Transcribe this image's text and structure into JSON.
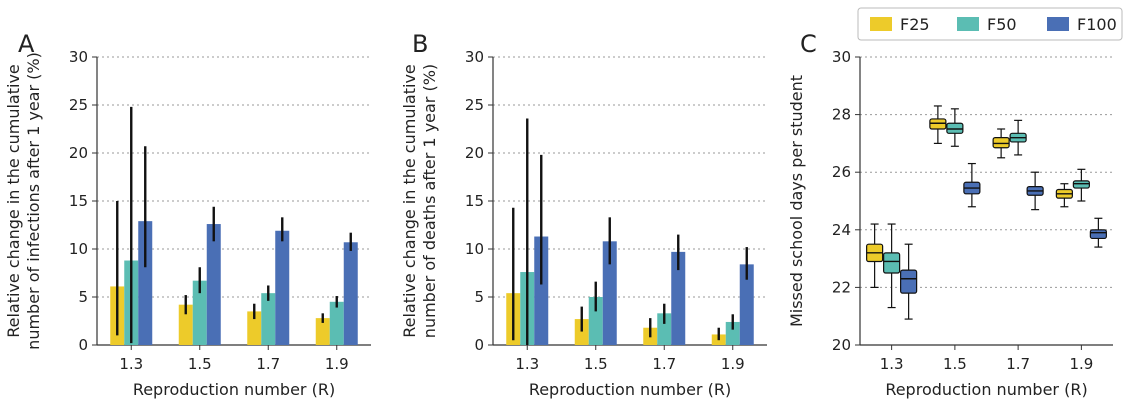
{
  "chart_data": [
    {
      "panel": "A",
      "type": "bar",
      "xlabel": "Reproduction number (R)",
      "ylabel": [
        "Relative change in the cumulative",
        "number of infections after 1 year (%)"
      ],
      "ylim": [
        0,
        30
      ],
      "yticks": [
        0,
        5,
        10,
        15,
        20,
        25,
        30
      ],
      "grid": "horizontal dotted",
      "categories": [
        "1.3",
        "1.5",
        "1.7",
        "1.9"
      ],
      "series": [
        {
          "name": "F25",
          "values": [
            6.1,
            4.2,
            3.5,
            2.8
          ],
          "err_low": [
            1.0,
            3.2,
            2.7,
            2.3
          ],
          "err_high": [
            15.0,
            5.2,
            4.3,
            3.3
          ]
        },
        {
          "name": "F50",
          "values": [
            8.8,
            6.7,
            5.4,
            4.5
          ],
          "err_low": [
            0.2,
            5.4,
            4.6,
            3.9
          ],
          "err_high": [
            24.8,
            8.1,
            6.2,
            5.1
          ]
        },
        {
          "name": "F100",
          "values": [
            12.9,
            12.6,
            11.9,
            10.7
          ],
          "err_low": [
            8.1,
            10.8,
            10.8,
            9.8
          ],
          "err_high": [
            20.7,
            14.4,
            13.3,
            11.7
          ]
        }
      ]
    },
    {
      "panel": "B",
      "type": "bar",
      "xlabel": "Reproduction number (R)",
      "ylabel": [
        "Relative change in the cumulative",
        "number of deaths after 1 year (%)"
      ],
      "ylim": [
        0,
        30
      ],
      "yticks": [
        0,
        5,
        10,
        15,
        20,
        25,
        30
      ],
      "grid": "horizontal dotted",
      "categories": [
        "1.3",
        "1.5",
        "1.7",
        "1.9"
      ],
      "series": [
        {
          "name": "F25",
          "values": [
            5.4,
            2.7,
            1.8,
            1.1
          ],
          "err_low": [
            0.5,
            1.4,
            0.8,
            0.5
          ],
          "err_high": [
            14.3,
            4.0,
            2.8,
            1.8
          ]
        },
        {
          "name": "F50",
          "values": [
            7.6,
            5.0,
            3.3,
            2.4
          ],
          "err_low": [
            0.0,
            3.5,
            2.2,
            1.6
          ],
          "err_high": [
            23.6,
            6.6,
            4.3,
            3.2
          ]
        },
        {
          "name": "F100",
          "values": [
            11.3,
            10.8,
            9.7,
            8.4
          ],
          "err_low": [
            6.3,
            8.4,
            7.8,
            6.8
          ],
          "err_high": [
            19.8,
            13.3,
            11.5,
            10.2
          ]
        }
      ]
    },
    {
      "panel": "C",
      "type": "box",
      "xlabel": "Reproduction number (R)",
      "ylabel": [
        "Missed school days per student"
      ],
      "ylim": [
        20,
        30
      ],
      "yticks": [
        20,
        22,
        24,
        26,
        28,
        30
      ],
      "grid": "horizontal dotted",
      "categories": [
        "1.3",
        "1.5",
        "1.7",
        "1.9"
      ],
      "legend": {
        "position": "top, outside",
        "entries": [
          "F25",
          "F50",
          "F100"
        ]
      },
      "series": [
        {
          "name": "F25",
          "boxes": [
            {
              "min": 22.0,
              "q1": 22.9,
              "median": 23.2,
              "q3": 23.5,
              "max": 24.2
            },
            {
              "min": 27.0,
              "q1": 27.5,
              "median": 27.7,
              "q3": 27.85,
              "max": 28.3
            },
            {
              "min": 26.5,
              "q1": 26.85,
              "median": 27.0,
              "q3": 27.2,
              "max": 27.5
            },
            {
              "min": 24.8,
              "q1": 25.1,
              "median": 25.25,
              "q3": 25.4,
              "max": 25.6
            }
          ]
        },
        {
          "name": "F50",
          "boxes": [
            {
              "min": 21.3,
              "q1": 22.5,
              "median": 22.9,
              "q3": 23.2,
              "max": 24.2
            },
            {
              "min": 26.9,
              "q1": 27.35,
              "median": 27.5,
              "q3": 27.7,
              "max": 28.2
            },
            {
              "min": 26.6,
              "q1": 27.05,
              "median": 27.2,
              "q3": 27.35,
              "max": 27.8
            },
            {
              "min": 25.0,
              "q1": 25.45,
              "median": 25.6,
              "q3": 25.7,
              "max": 26.1
            }
          ]
        },
        {
          "name": "F100",
          "boxes": [
            {
              "min": 20.9,
              "q1": 21.8,
              "median": 22.3,
              "q3": 22.6,
              "max": 23.5
            },
            {
              "min": 24.8,
              "q1": 25.25,
              "median": 25.45,
              "q3": 25.65,
              "max": 26.3
            },
            {
              "min": 24.7,
              "q1": 25.2,
              "median": 25.35,
              "q3": 25.5,
              "max": 26.0
            },
            {
              "min": 23.4,
              "q1": 23.7,
              "median": 23.9,
              "q3": 24.0,
              "max": 24.4
            }
          ]
        }
      ]
    }
  ],
  "colors": {
    "F25": "#edcb2a",
    "F50": "#5bbdb3",
    "F100": "#4a6fb5",
    "grid": "#9a9a9a",
    "error": "#111111",
    "axis": "#333333"
  }
}
